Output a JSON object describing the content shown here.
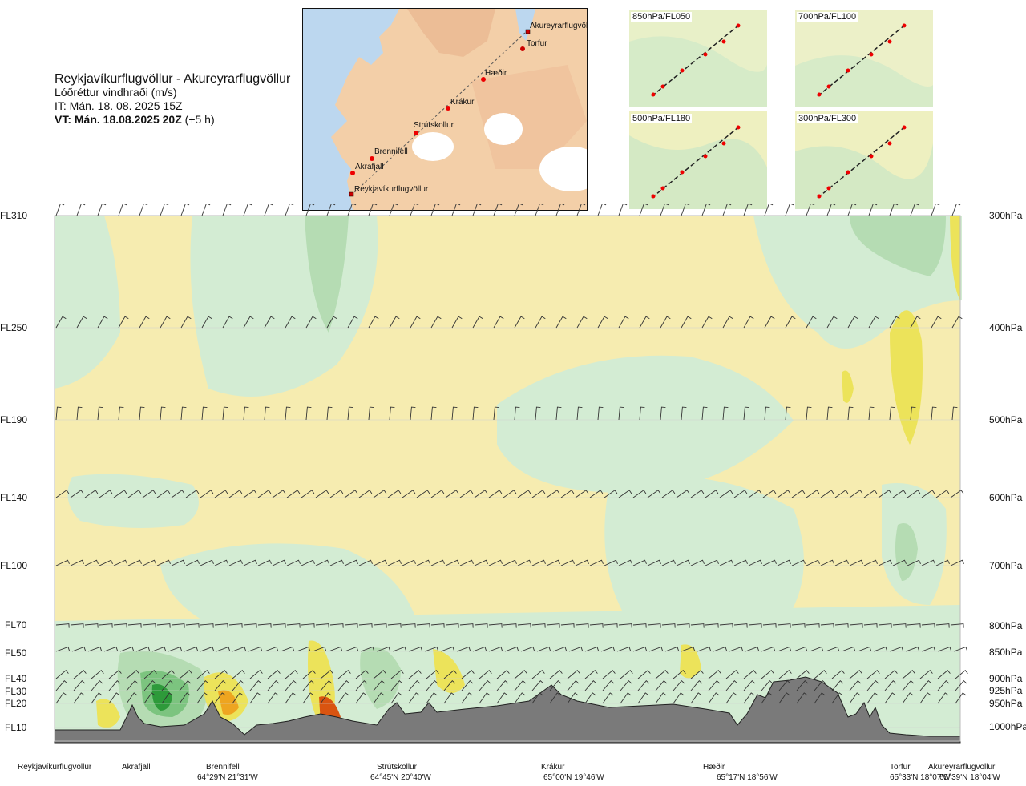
{
  "header": {
    "title": "Reykjavíkurflugvöllur - Akureyrarflugvöllur",
    "subtitle": "Lóðréttur vindhraði (m/s)",
    "issue_time": "IT: Mán. 18. 08. 2025 15Z",
    "valid_time": "VT: Mán. 18.08.2025 20Z",
    "lead": "(+5 h)"
  },
  "map": {
    "waypoints": [
      "Akureyrarflugvöllur",
      "Torfur",
      "Hæðir",
      "Krákur",
      "Strútskollur",
      "Brennifell",
      "Akrafjall",
      "Reykjavíkurflugvöllur"
    ]
  },
  "thumbnails": [
    "850hPa/FL050",
    "700hPa/FL100",
    "500hPa/FL180",
    "300hPa/FL300"
  ],
  "chart_data": {
    "type": "heatmap",
    "title": "Reykjavíkurflugvöllur - Akureyrarflugvöllur",
    "subtitle": "Lóðréttur vindhraði (m/s)",
    "y_left_ticks": [
      "FL310",
      "FL250",
      "FL190",
      "FL140",
      "FL100",
      "FL70",
      "FL50",
      "FL40",
      "FL30",
      "FL20",
      "FL10"
    ],
    "y_right_ticks": [
      "300hPa",
      "400hPa",
      "500hPa",
      "600hPa",
      "700hPa",
      "800hPa",
      "850hPa",
      "900hPa",
      "925hPa",
      "950hPa",
      "1000hPa"
    ],
    "x_locations": [
      {
        "name": "Reykjavíkurflugvöllur",
        "coord": ""
      },
      {
        "name": "Akrafjall",
        "coord": ""
      },
      {
        "name": "Brennifell",
        "coord": "64°29'N 21°31'W"
      },
      {
        "name": "Strútskollur",
        "coord": "64°45'N 20°40'W"
      },
      {
        "name": "Krákur",
        "coord": "65°00'N 19°46'W"
      },
      {
        "name": "Hæðir",
        "coord": "65°17'N 18°56'W"
      },
      {
        "name": "Torfur",
        "coord": "65°33'N 18°07'W"
      },
      {
        "name": "Akureyrarflugvöllur",
        "coord": "65°39'N 18°04'W"
      }
    ],
    "colors": {
      "strong_down": "#2e9a3a",
      "moderate_down": "#7cc47f",
      "weak_down": "#b5dcb3",
      "slight_down": "#d3ecd3",
      "neutral": "#fbf8d8",
      "slight_up": "#f6ecb0",
      "weak_up": "#ece35a",
      "moderate_up": "#eea520",
      "strong_up": "#d95410",
      "terrain": "#7a7a7a"
    },
    "grid": true
  }
}
